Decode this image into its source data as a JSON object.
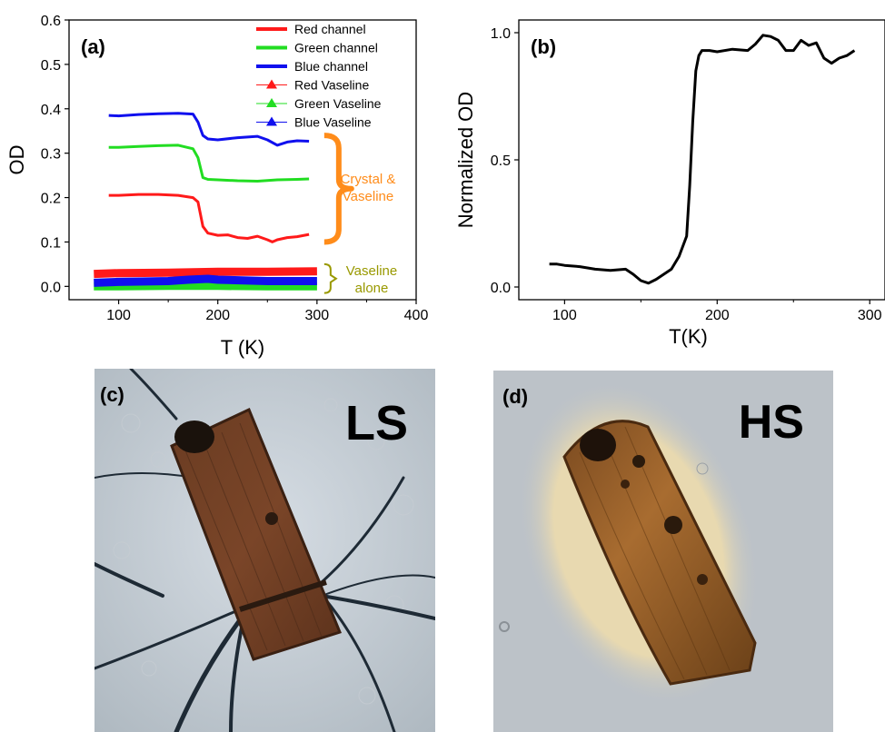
{
  "chart_data": [
    {
      "panel_label": "(a)",
      "type": "line",
      "xlabel": "T (K)",
      "ylabel": "OD",
      "xlim": [
        50,
        400
      ],
      "ylim": [
        -0.03,
        0.6
      ],
      "xticks": [
        100,
        200,
        300,
        400
      ],
      "yticks": [
        0.0,
        0.1,
        0.2,
        0.3,
        0.4,
        0.5,
        0.6
      ],
      "xtick_labels": [
        "100",
        "200",
        "300",
        "400"
      ],
      "ytick_labels": [
        "0.0",
        "0.1",
        "0.2",
        "0.3",
        "0.4",
        "0.5",
        "0.6"
      ],
      "legend_position": "top-right",
      "series": [
        {
          "name": "Red channel",
          "color": "#ff1a1a",
          "marker": "none",
          "x": [
            90,
            100,
            120,
            140,
            160,
            175,
            180,
            185,
            190,
            200,
            210,
            220,
            230,
            240,
            250,
            255,
            260,
            270,
            280,
            292
          ],
          "y": [
            0.205,
            0.205,
            0.207,
            0.207,
            0.205,
            0.2,
            0.19,
            0.135,
            0.12,
            0.115,
            0.116,
            0.11,
            0.108,
            0.113,
            0.105,
            0.1,
            0.105,
            0.11,
            0.112,
            0.117
          ]
        },
        {
          "name": "Green  channel",
          "color": "#22dd22",
          "marker": "none",
          "x": [
            90,
            100,
            120,
            140,
            160,
            175,
            180,
            185,
            190,
            200,
            220,
            240,
            260,
            280,
            292
          ],
          "y": [
            0.313,
            0.313,
            0.315,
            0.317,
            0.318,
            0.31,
            0.29,
            0.245,
            0.241,
            0.24,
            0.238,
            0.237,
            0.24,
            0.241,
            0.242
          ]
        },
        {
          "name": "Blue  channel",
          "color": "#1010ee",
          "marker": "none",
          "x": [
            90,
            100,
            120,
            140,
            160,
            175,
            180,
            185,
            190,
            200,
            220,
            240,
            250,
            260,
            270,
            280,
            292
          ],
          "y": [
            0.385,
            0.384,
            0.387,
            0.389,
            0.39,
            0.388,
            0.37,
            0.34,
            0.332,
            0.33,
            0.335,
            0.338,
            0.33,
            0.318,
            0.325,
            0.328,
            0.327
          ]
        },
        {
          "name": "Red Vaseline",
          "color": "#ff1a1a",
          "marker": "triangle",
          "x": [
            75,
            100,
            150,
            200,
            250,
            300
          ],
          "y": [
            0.028,
            0.03,
            0.031,
            0.033,
            0.033,
            0.034
          ]
        },
        {
          "name": "Green  Vaseline",
          "color": "#22dd22",
          "marker": "triangle",
          "x": [
            75,
            100,
            150,
            200,
            250,
            300
          ],
          "y": [
            0.0,
            0.0,
            0.001,
            0.001,
            0.0,
            0.0
          ]
        },
        {
          "name": "Blue  Vaseline",
          "color": "#1010ee",
          "marker": "triangle",
          "x": [
            75,
            100,
            150,
            170,
            190,
            200,
            250,
            300
          ],
          "y": [
            0.008,
            0.01,
            0.012,
            0.015,
            0.017,
            0.015,
            0.012,
            0.012
          ]
        }
      ],
      "annotations": [
        {
          "text": "Crystal & Vaseline",
          "lines": [
            "Crystal &",
            "Vaseline"
          ],
          "color": "#ff8c1a"
        },
        {
          "text": "Vaseline alone",
          "lines": [
            "Vaseline",
            "alone"
          ],
          "color": "#999900"
        }
      ]
    },
    {
      "panel_label": "(b)",
      "type": "line",
      "xlabel": "T(K)",
      "ylabel": "Normalized OD",
      "xlim": [
        70,
        310
      ],
      "ylim": [
        -0.05,
        1.05
      ],
      "xticks": [
        100,
        200,
        300
      ],
      "yticks": [
        0.0,
        0.5,
        1.0
      ],
      "xtick_labels": [
        "100",
        "200",
        "300"
      ],
      "ytick_labels": [
        "0.0",
        "0.5",
        "1.0"
      ],
      "series": [
        {
          "color": "#000000",
          "marker": "none",
          "x": [
            90,
            95,
            100,
            110,
            120,
            130,
            140,
            145,
            150,
            155,
            160,
            165,
            170,
            175,
            180,
            182,
            184,
            186,
            188,
            190,
            195,
            200,
            210,
            220,
            225,
            230,
            235,
            240,
            245,
            250,
            255,
            260,
            265,
            270,
            275,
            280,
            285,
            290
          ],
          "y": [
            0.09,
            0.09,
            0.085,
            0.08,
            0.07,
            0.065,
            0.07,
            0.05,
            0.025,
            0.015,
            0.03,
            0.05,
            0.07,
            0.12,
            0.2,
            0.4,
            0.65,
            0.85,
            0.91,
            0.93,
            0.93,
            0.925,
            0.935,
            0.93,
            0.955,
            0.99,
            0.985,
            0.97,
            0.93,
            0.93,
            0.97,
            0.95,
            0.96,
            0.9,
            0.88,
            0.9,
            0.91,
            0.93
          ]
        }
      ]
    }
  ],
  "panels": {
    "c": {
      "label": "(c)",
      "state": "LS"
    },
    "d": {
      "label": "(d)",
      "state": "HS"
    }
  }
}
